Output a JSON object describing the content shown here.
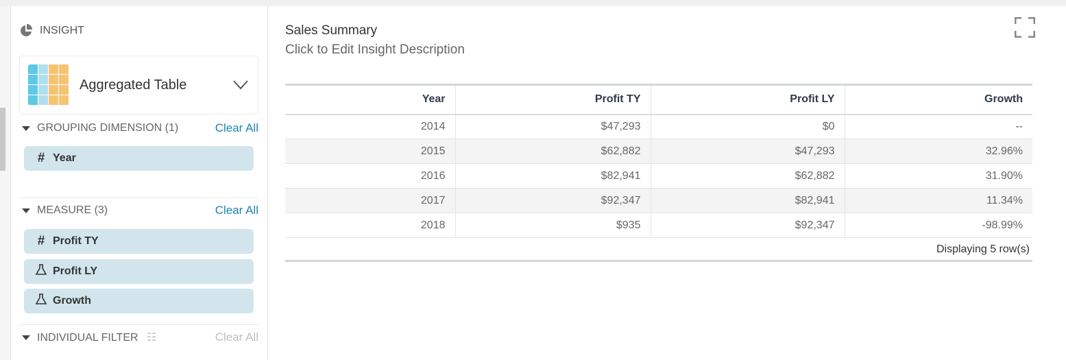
{
  "sidebar": {
    "header": "INSIGHT",
    "visualization": {
      "label": "Aggregated Table",
      "icon": "aggregated-table-icon"
    },
    "grouping": {
      "title": "GROUPING DIMENSION (1)",
      "clear": "Clear All",
      "items": [
        {
          "label": "Year",
          "icon": "hash-icon"
        }
      ]
    },
    "measure": {
      "title": "MEASURE (3)",
      "clear": "Clear All",
      "items": [
        {
          "label": "Profit TY",
          "icon": "hash-icon"
        },
        {
          "label": "Profit LY",
          "icon": "flask-icon"
        },
        {
          "label": "Growth",
          "icon": "flask-icon"
        }
      ]
    },
    "filter": {
      "title": "INDIVIDUAL FILTER",
      "clear": "Clear All"
    }
  },
  "main": {
    "title": "Sales Summary",
    "description": "Click to Edit Insight Description",
    "table": {
      "columns": [
        "Year",
        "Profit TY",
        "Profit LY",
        "Growth"
      ],
      "rows": [
        [
          "2014",
          "$47,293",
          "$0",
          "--"
        ],
        [
          "2015",
          "$62,882",
          "$47,293",
          "32.96%"
        ],
        [
          "2016",
          "$82,941",
          "$62,882",
          "31.90%"
        ],
        [
          "2017",
          "$92,347",
          "$82,941",
          "11.34%"
        ],
        [
          "2018",
          "$935",
          "$92,347",
          "-98.99%"
        ]
      ],
      "footer": "Displaying 5 row(s)"
    }
  },
  "colors": {
    "link": "#1a85b6",
    "pill": "#d2e5ec",
    "icon_blue": "#5ec8e5",
    "icon_light_blue": "#b0e0ef",
    "icon_orange": "#f7c373"
  }
}
